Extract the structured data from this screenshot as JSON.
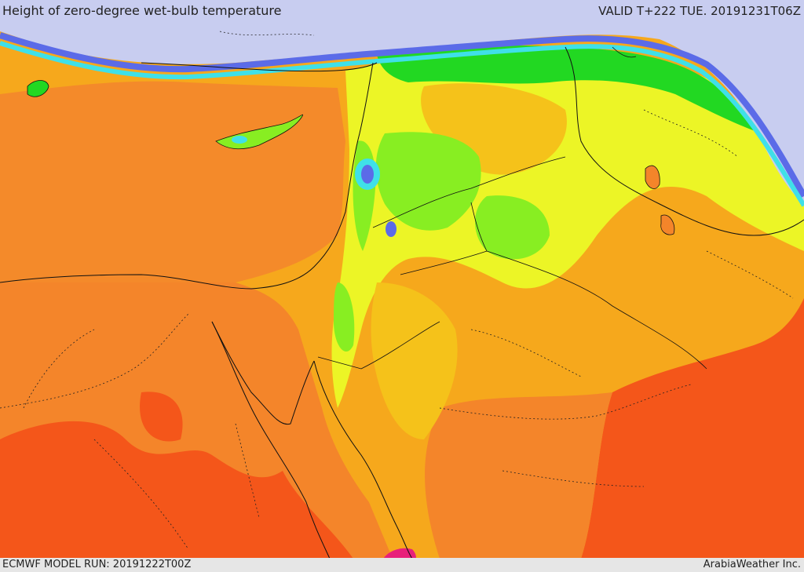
{
  "header": {
    "title": "Height of zero-degree wet-bulb temperature",
    "valid": "VALID T+222 TUE. 20191231T06Z"
  },
  "footer": {
    "model_run": "ECMWF MODEL RUN: 20191222T00Z",
    "credit": "ArabiaWeather Inc."
  },
  "palette": {
    "sea_lavender": "#c8cdf0",
    "deep_blue": "#5b6be8",
    "cyan": "#3fe0e8",
    "green": "#22d822",
    "lime": "#88ee22",
    "yellow": "#ecf526",
    "gold": "#f5c21a",
    "orange": "#f6a81c",
    "dark_orange": "#f4852a",
    "red_orange": "#f4561a",
    "magenta": "#e8207a"
  }
}
